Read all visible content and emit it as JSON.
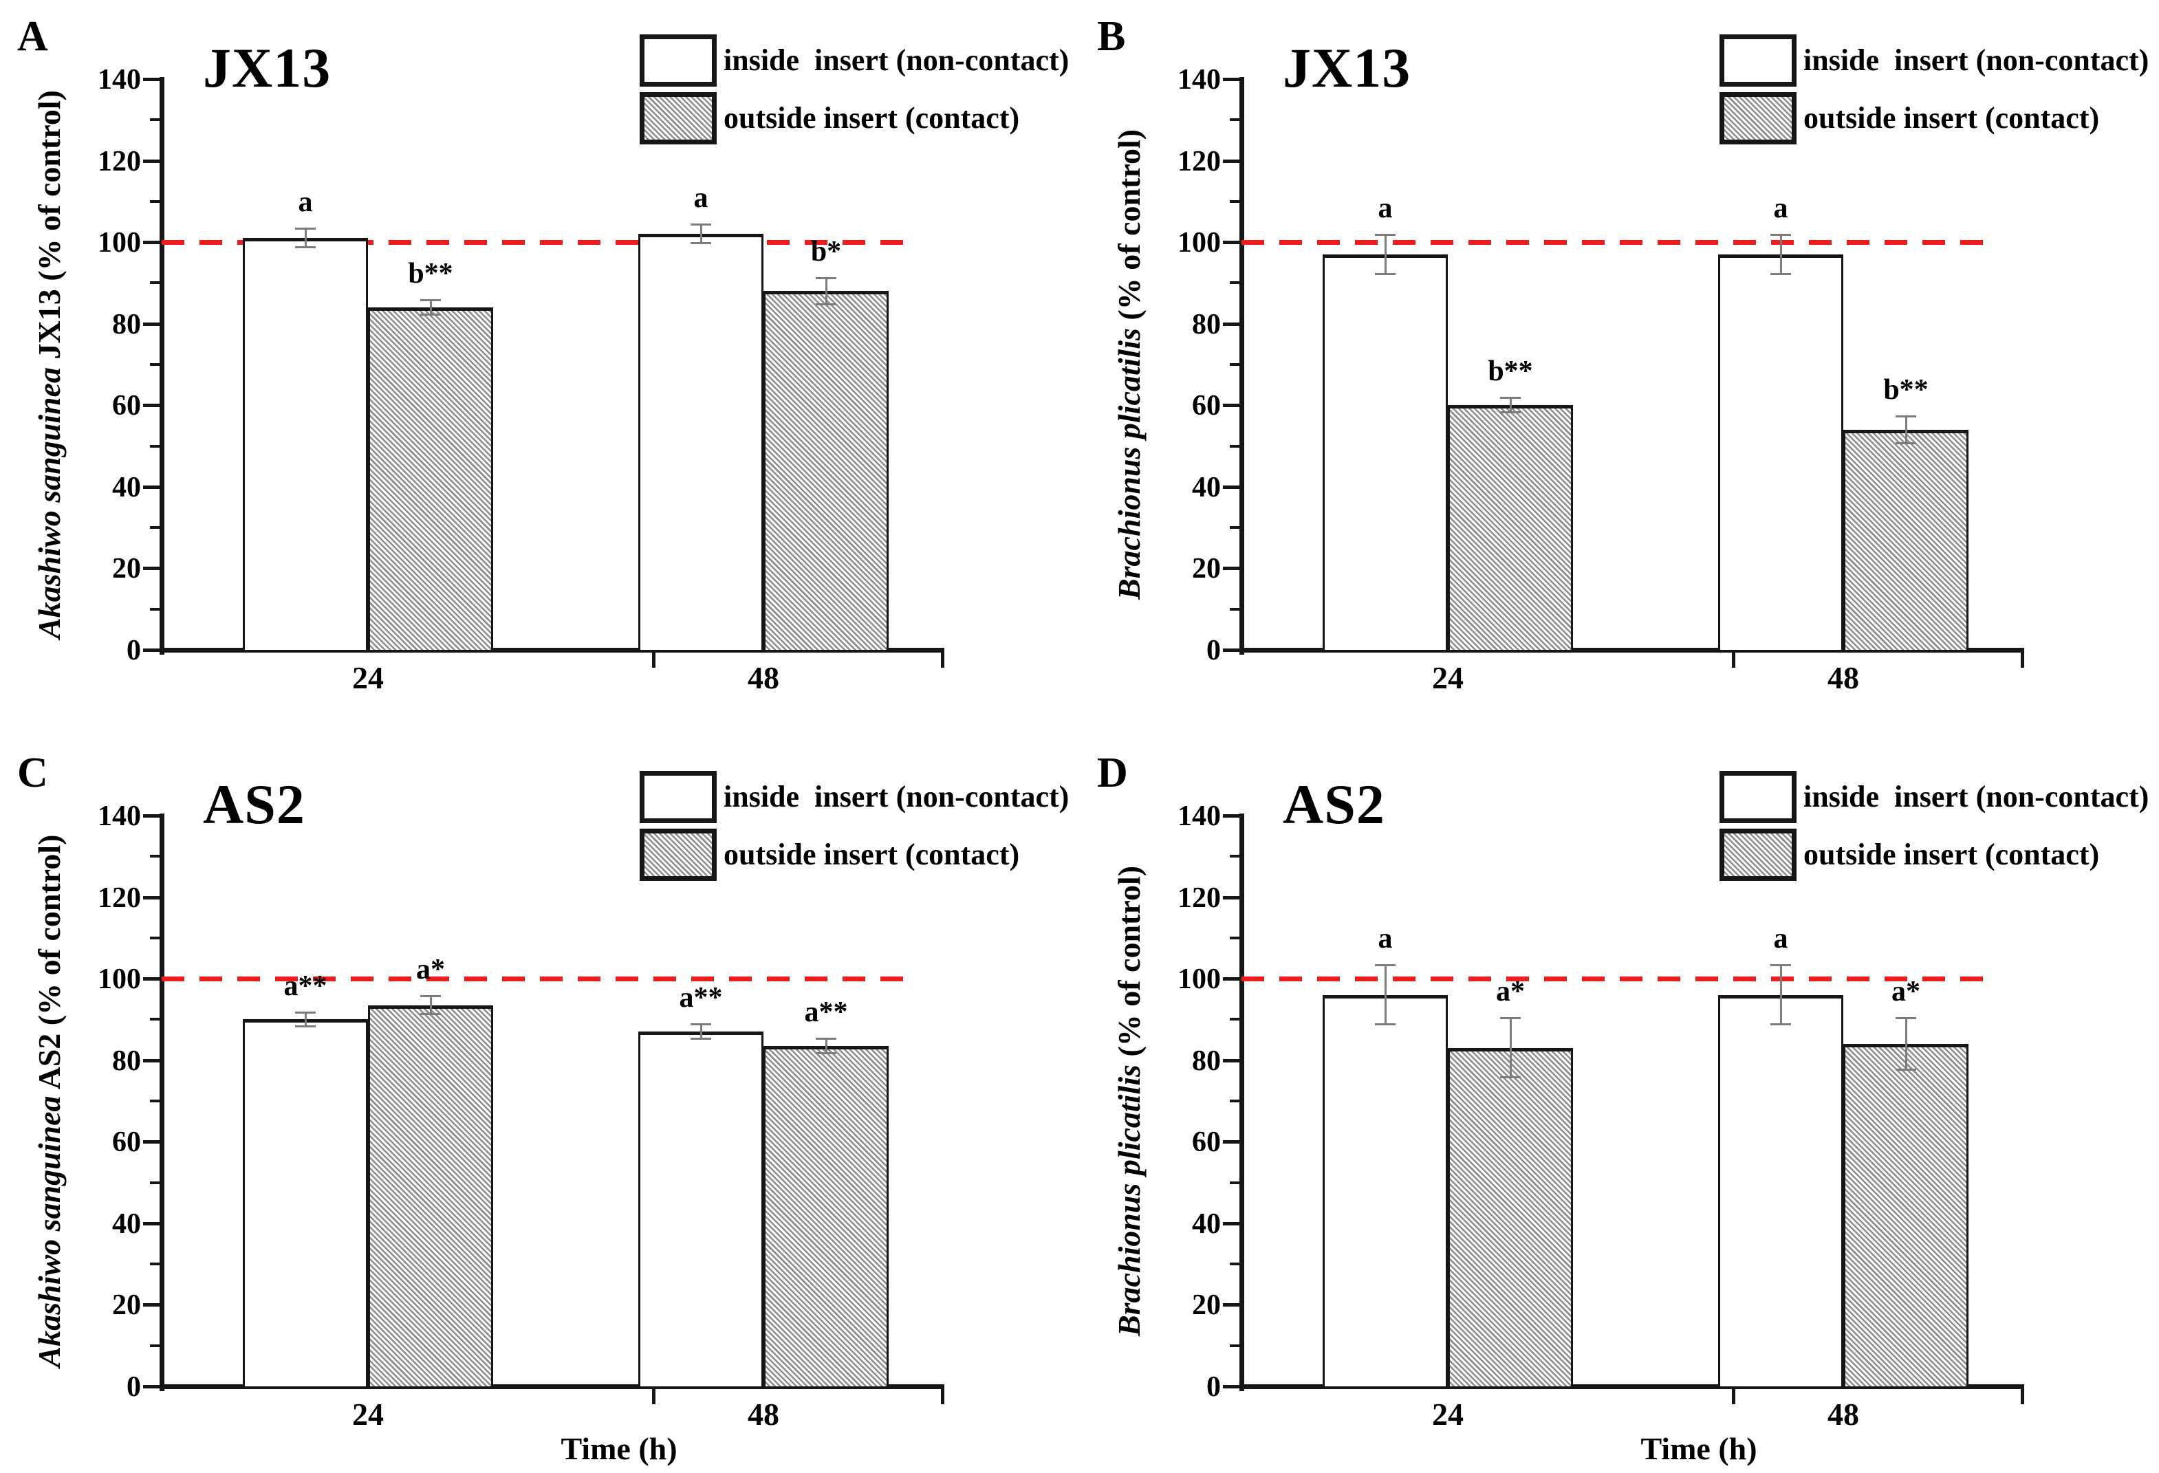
{
  "figure": {
    "legend": {
      "inside_label": "inside  insert (non-contact)",
      "outside_label": "outside insert (contact)"
    },
    "colors": {
      "reference_line": "#ee1c1c",
      "bar_border": "#161616",
      "hatch_stripe": "#8c8c8c",
      "error_bar": "#7c7c7c",
      "text": "#000000"
    }
  },
  "chart_data": [
    {
      "type": "bar",
      "panel": "A",
      "title": "JX13",
      "ylabel_italic": "Akashiwo sanguinea",
      "ylabel_rest": " JX13 (% of control)",
      "xlabel": "",
      "categories": [
        "24",
        "48"
      ],
      "yticks": [
        0,
        20,
        40,
        60,
        80,
        100,
        120,
        140
      ],
      "ylim": [
        0,
        140
      ],
      "reference_line": 100,
      "series": [
        {
          "name": "inside insert (non-contact)",
          "values": [
            101,
            102
          ],
          "errors": [
            2.5,
            2.5
          ],
          "annotations": [
            "a",
            "a"
          ]
        },
        {
          "name": "outside insert (contact)",
          "values": [
            84,
            88
          ],
          "errors": [
            2,
            3.5
          ],
          "annotations": [
            "b**",
            "b*"
          ]
        }
      ]
    },
    {
      "type": "bar",
      "panel": "B",
      "title": "JX13",
      "ylabel_italic": "Brachionus plicatilis",
      "ylabel_rest": " (% of control)",
      "xlabel": "",
      "categories": [
        "24",
        "48"
      ],
      "yticks": [
        0,
        20,
        40,
        60,
        80,
        100,
        120,
        140
      ],
      "ylim": [
        0,
        140
      ],
      "reference_line": 100,
      "series": [
        {
          "name": "inside insert (non-contact)",
          "values": [
            97,
            97
          ],
          "errors": [
            5,
            5
          ],
          "annotations": [
            "a",
            "a"
          ]
        },
        {
          "name": "outside insert (contact)",
          "values": [
            60,
            54
          ],
          "errors": [
            2,
            3.5
          ],
          "annotations": [
            "b**",
            "b**"
          ]
        }
      ]
    },
    {
      "type": "bar",
      "panel": "C",
      "title": "AS2",
      "ylabel_italic": "Akashiwo sanguinea",
      "ylabel_rest": " AS2 (% of control)",
      "xlabel": "Time (h)",
      "categories": [
        "24",
        "48"
      ],
      "yticks": [
        0,
        20,
        40,
        60,
        80,
        100,
        120,
        140
      ],
      "ylim": [
        0,
        140
      ],
      "reference_line": 100,
      "series": [
        {
          "name": "inside insert (non-contact)",
          "values": [
            90,
            87
          ],
          "errors": [
            2,
            2
          ],
          "annotations": [
            "a**",
            "a**"
          ]
        },
        {
          "name": "outside insert (contact)",
          "values": [
            93.5,
            83.5
          ],
          "errors": [
            2.5,
            2
          ],
          "annotations": [
            "a*",
            "a**"
          ]
        }
      ]
    },
    {
      "type": "bar",
      "panel": "D",
      "title": "AS2",
      "ylabel_italic": "Brachionus plicatilis",
      "ylabel_rest": " (% of control)",
      "xlabel": "Time (h)",
      "categories": [
        "24",
        "48"
      ],
      "yticks": [
        0,
        20,
        40,
        60,
        80,
        100,
        120,
        140
      ],
      "ylim": [
        0,
        140
      ],
      "reference_line": 100,
      "series": [
        {
          "name": "inside insert (non-contact)",
          "values": [
            96,
            96
          ],
          "errors": [
            7.5,
            7.5
          ],
          "annotations": [
            "a",
            "a"
          ]
        },
        {
          "name": "outside insert (contact)",
          "values": [
            83,
            84
          ],
          "errors": [
            7.5,
            6.5
          ],
          "annotations": [
            "a*",
            "a*"
          ]
        }
      ]
    }
  ]
}
